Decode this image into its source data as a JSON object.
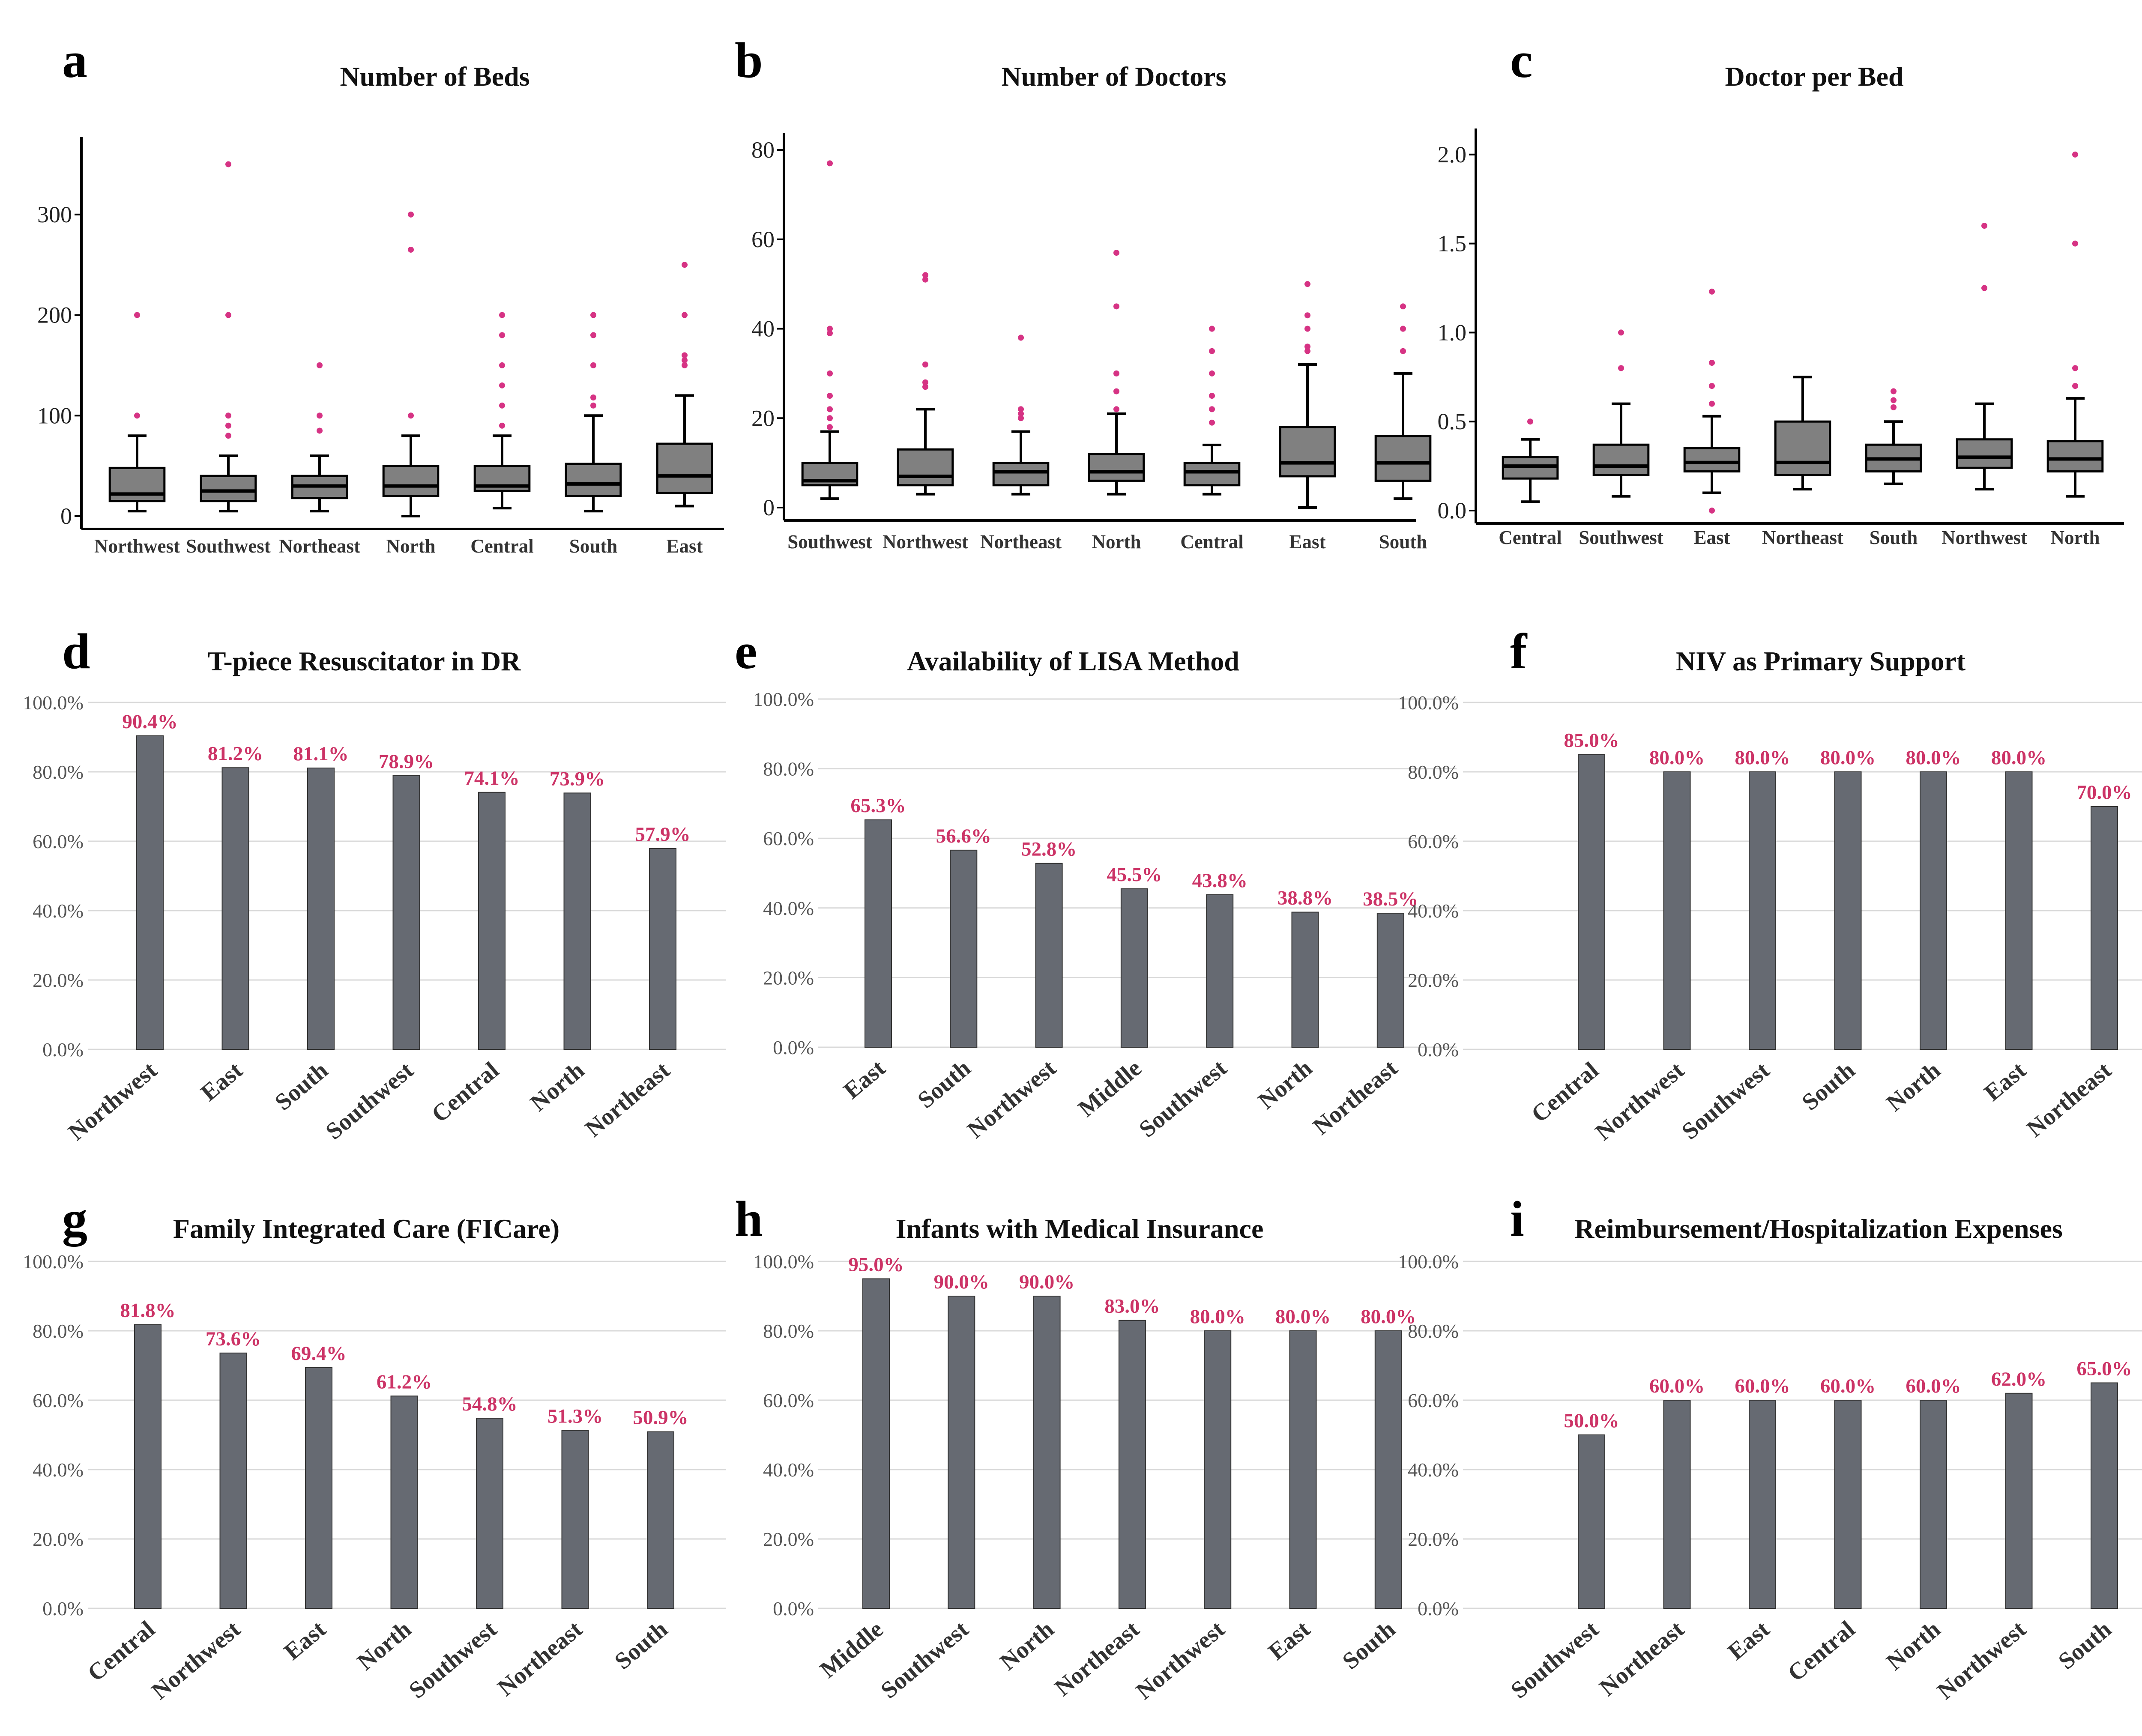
{
  "colors": {
    "bar": "#666a72",
    "box": "#808080",
    "outlier": "#d63384",
    "label": "#cc3366",
    "grid": "#d9d9d9",
    "axis": "#000000"
  },
  "chart_data": [
    {
      "letter": "a",
      "type": "box",
      "title": "Number of Beds",
      "ylim": [
        0,
        360
      ],
      "yticks": [
        0,
        100,
        200,
        300
      ],
      "tick_labels": [
        "0",
        "100",
        "200",
        "300"
      ],
      "categories": [
        "Northwest",
        "Southwest",
        "Northeast",
        "North",
        "Central",
        "South",
        "East"
      ],
      "boxes": [
        {
          "whisker_low": 5,
          "q1": 15,
          "median": 22,
          "q3": 48,
          "whisker_high": 80,
          "outliers": [
            100,
            200
          ]
        },
        {
          "whisker_low": 5,
          "q1": 15,
          "median": 25,
          "q3": 40,
          "whisker_high": 60,
          "outliers": [
            80,
            90,
            100,
            200,
            350
          ]
        },
        {
          "whisker_low": 5,
          "q1": 18,
          "median": 30,
          "q3": 40,
          "whisker_high": 60,
          "outliers": [
            85,
            100,
            150
          ]
        },
        {
          "whisker_low": 0,
          "q1": 20,
          "median": 30,
          "q3": 50,
          "whisker_high": 80,
          "outliers": [
            100,
            265,
            300
          ]
        },
        {
          "whisker_low": 8,
          "q1": 25,
          "median": 30,
          "q3": 50,
          "whisker_high": 80,
          "outliers": [
            90,
            110,
            130,
            150,
            180,
            200
          ]
        },
        {
          "whisker_low": 5,
          "q1": 20,
          "median": 32,
          "q3": 52,
          "whisker_high": 100,
          "outliers": [
            110,
            118,
            150,
            180,
            200
          ]
        },
        {
          "whisker_low": 10,
          "q1": 23,
          "median": 40,
          "q3": 72,
          "whisker_high": 120,
          "outliers": [
            150,
            155,
            160,
            200,
            250
          ]
        }
      ]
    },
    {
      "letter": "b",
      "type": "box",
      "title": "Number of Doctors",
      "ylim": [
        0,
        80
      ],
      "yticks": [
        0,
        20,
        40,
        60,
        80
      ],
      "tick_labels": [
        "0",
        "20",
        "40",
        "60",
        "80"
      ],
      "categories": [
        "Southwest",
        "Northwest",
        "Northeast",
        "North",
        "Central",
        "East",
        "South"
      ],
      "boxes": [
        {
          "whisker_low": 2,
          "q1": 5,
          "median": 6,
          "q3": 10,
          "whisker_high": 17,
          "outliers": [
            18,
            20,
            22,
            25,
            30,
            39,
            40,
            77
          ]
        },
        {
          "whisker_low": 3,
          "q1": 5,
          "median": 7,
          "q3": 13,
          "whisker_high": 22,
          "outliers": [
            27,
            28,
            32,
            51,
            52
          ]
        },
        {
          "whisker_low": 3,
          "q1": 5,
          "median": 8,
          "q3": 10,
          "whisker_high": 17,
          "outliers": [
            20,
            21,
            22,
            38
          ]
        },
        {
          "whisker_low": 3,
          "q1": 6,
          "median": 8,
          "q3": 12,
          "whisker_high": 21,
          "outliers": [
            22,
            26,
            30,
            45,
            57
          ]
        },
        {
          "whisker_low": 3,
          "q1": 5,
          "median": 8,
          "q3": 10,
          "whisker_high": 14,
          "outliers": [
            19,
            22,
            25,
            30,
            35,
            40
          ]
        },
        {
          "whisker_low": 0,
          "q1": 7,
          "median": 10,
          "q3": 18,
          "whisker_high": 32,
          "outliers": [
            35,
            36,
            40,
            43,
            50
          ]
        },
        {
          "whisker_low": 2,
          "q1": 6,
          "median": 10,
          "q3": 16,
          "whisker_high": 30,
          "outliers": [
            35,
            40,
            45
          ]
        }
      ],
      "note": "East whisker top shown near 32"
    },
    {
      "letter": "c",
      "type": "box",
      "title": "Doctor per Bed",
      "ylim": [
        0,
        2.05
      ],
      "yticks": [
        0,
        0.5,
        1.0,
        1.5,
        2.0
      ],
      "tick_labels": [
        "0.0",
        "0.5",
        "1.0",
        "1.5",
        "2.0"
      ],
      "categories": [
        "Central",
        "Southwest",
        "East",
        "Northeast",
        "South",
        "Northwest",
        "North"
      ],
      "boxes": [
        {
          "whisker_low": 0.05,
          "q1": 0.18,
          "median": 0.25,
          "q3": 0.3,
          "whisker_high": 0.4,
          "outliers": [
            0.5
          ]
        },
        {
          "whisker_low": 0.08,
          "q1": 0.2,
          "median": 0.25,
          "q3": 0.37,
          "whisker_high": 0.6,
          "outliers": [
            0.8,
            1.0
          ]
        },
        {
          "whisker_low": 0.1,
          "q1": 0.22,
          "median": 0.27,
          "q3": 0.35,
          "whisker_high": 0.53,
          "outliers": [
            0.0,
            0.6,
            0.7,
            0.83,
            1.23
          ]
        },
        {
          "whisker_low": 0.12,
          "q1": 0.2,
          "median": 0.27,
          "q3": 0.5,
          "whisker_high": 0.75,
          "outliers": []
        },
        {
          "whisker_low": 0.15,
          "q1": 0.22,
          "median": 0.29,
          "q3": 0.37,
          "whisker_high": 0.5,
          "outliers": [
            0.58,
            0.62,
            0.67
          ]
        },
        {
          "whisker_low": 0.12,
          "q1": 0.24,
          "median": 0.3,
          "q3": 0.4,
          "whisker_high": 0.6,
          "outliers": [
            1.25,
            1.6
          ]
        },
        {
          "whisker_low": 0.08,
          "q1": 0.22,
          "median": 0.29,
          "q3": 0.39,
          "whisker_high": 0.63,
          "outliers": [
            0.7,
            0.8,
            1.5,
            2.0
          ]
        }
      ]
    },
    {
      "letter": "d",
      "type": "bar",
      "title": "T-piece Resuscitator in DR",
      "ylim": [
        0,
        100
      ],
      "yticks": [
        0,
        20,
        40,
        60,
        80,
        100
      ],
      "tick_labels": [
        "0.0%",
        "20.0%",
        "40.0%",
        "60.0%",
        "80.0%",
        "100.0%"
      ],
      "categories": [
        "Northwest",
        "East",
        "South",
        "Southwest",
        "Central",
        "North",
        "Northeast"
      ],
      "values": [
        90.4,
        81.2,
        81.1,
        78.9,
        74.1,
        73.9,
        57.9
      ],
      "labels": [
        "90.4%",
        "81.2%",
        "81.1%",
        "78.9%",
        "74.1%",
        "73.9%",
        "57.9%"
      ]
    },
    {
      "letter": "e",
      "type": "bar",
      "title": "Availability of LISA Method",
      "ylim": [
        0,
        100
      ],
      "yticks": [
        0,
        20,
        40,
        60,
        80,
        100
      ],
      "tick_labels": [
        "0.0%",
        "20.0%",
        "40.0%",
        "60.0%",
        "80.0%",
        "100.0%"
      ],
      "categories": [
        "East",
        "South",
        "Northwest",
        "Middle",
        "Southwest",
        "North",
        "Northeast"
      ],
      "values": [
        65.3,
        56.6,
        52.8,
        45.5,
        43.8,
        38.8,
        38.5
      ],
      "labels": [
        "65.3%",
        "56.6%",
        "52.8%",
        "45.5%",
        "43.8%",
        "38.8%",
        "38.5%"
      ]
    },
    {
      "letter": "f",
      "type": "bar",
      "title": "NIV as Primary Support",
      "ylim": [
        0,
        100
      ],
      "yticks": [
        0,
        20,
        40,
        60,
        80,
        100
      ],
      "tick_labels": [
        "0.0%",
        "20.0%",
        "40.0%",
        "60.0%",
        "80.0%",
        "100.0%"
      ],
      "categories": [
        "Central",
        "Northwest",
        "Southwest",
        "South",
        "North",
        "East",
        "Northeast"
      ],
      "values": [
        85.0,
        80.0,
        80.0,
        80.0,
        80.0,
        80.0,
        70.0
      ],
      "labels": [
        "85.0%",
        "80.0%",
        "80.0%",
        "80.0%",
        "80.0%",
        "80.0%",
        "70.0%"
      ]
    },
    {
      "letter": "g",
      "type": "bar",
      "title": "Family Integrated Care (FICare)",
      "ylim": [
        0,
        100
      ],
      "yticks": [
        0,
        20,
        40,
        60,
        80,
        100
      ],
      "tick_labels": [
        "0.0%",
        "20.0%",
        "40.0%",
        "60.0%",
        "80.0%",
        "100.0%"
      ],
      "categories": [
        "Central",
        "Northwest",
        "East",
        "North",
        "Southwest",
        "Northeast",
        "South"
      ],
      "values": [
        81.8,
        73.6,
        69.4,
        61.2,
        54.8,
        51.3,
        50.9
      ],
      "labels": [
        "81.8%",
        "73.6%",
        "69.4%",
        "61.2%",
        "54.8%",
        "51.3%",
        "50.9%"
      ]
    },
    {
      "letter": "h",
      "type": "bar",
      "title": "Infants with Medical Insurance",
      "ylim": [
        0,
        100
      ],
      "yticks": [
        0,
        20,
        40,
        60,
        80,
        100
      ],
      "tick_labels": [
        "0.0%",
        "20.0%",
        "40.0%",
        "60.0%",
        "80.0%",
        "100.0%"
      ],
      "categories": [
        "Middle",
        "Southwest",
        "North",
        "Northeast",
        "Northwest",
        "East",
        "South"
      ],
      "values": [
        95.0,
        90.0,
        90.0,
        83.0,
        80.0,
        80.0,
        80.0
      ],
      "labels": [
        "95.0%",
        "90.0%",
        "90.0%",
        "83.0%",
        "80.0%",
        "80.0%",
        "80.0%"
      ]
    },
    {
      "letter": "i",
      "type": "bar",
      "title": "Reimbursement/Hospitalization Expenses",
      "ylim": [
        0,
        100
      ],
      "yticks": [
        0,
        20,
        40,
        60,
        80,
        100
      ],
      "tick_labels": [
        "0.0%",
        "20.0%",
        "40.0%",
        "60.0%",
        "80.0%",
        "100.0%"
      ],
      "categories": [
        "Southwest",
        "Northeast",
        "East",
        "Central",
        "North",
        "Northwest",
        "South"
      ],
      "values": [
        50.0,
        60.0,
        60.0,
        60.0,
        60.0,
        62.0,
        65.0
      ],
      "labels": [
        "50.0%",
        "60.0%",
        "60.0%",
        "60.0%",
        "60.0%",
        "62.0%",
        "65.0%"
      ]
    }
  ]
}
